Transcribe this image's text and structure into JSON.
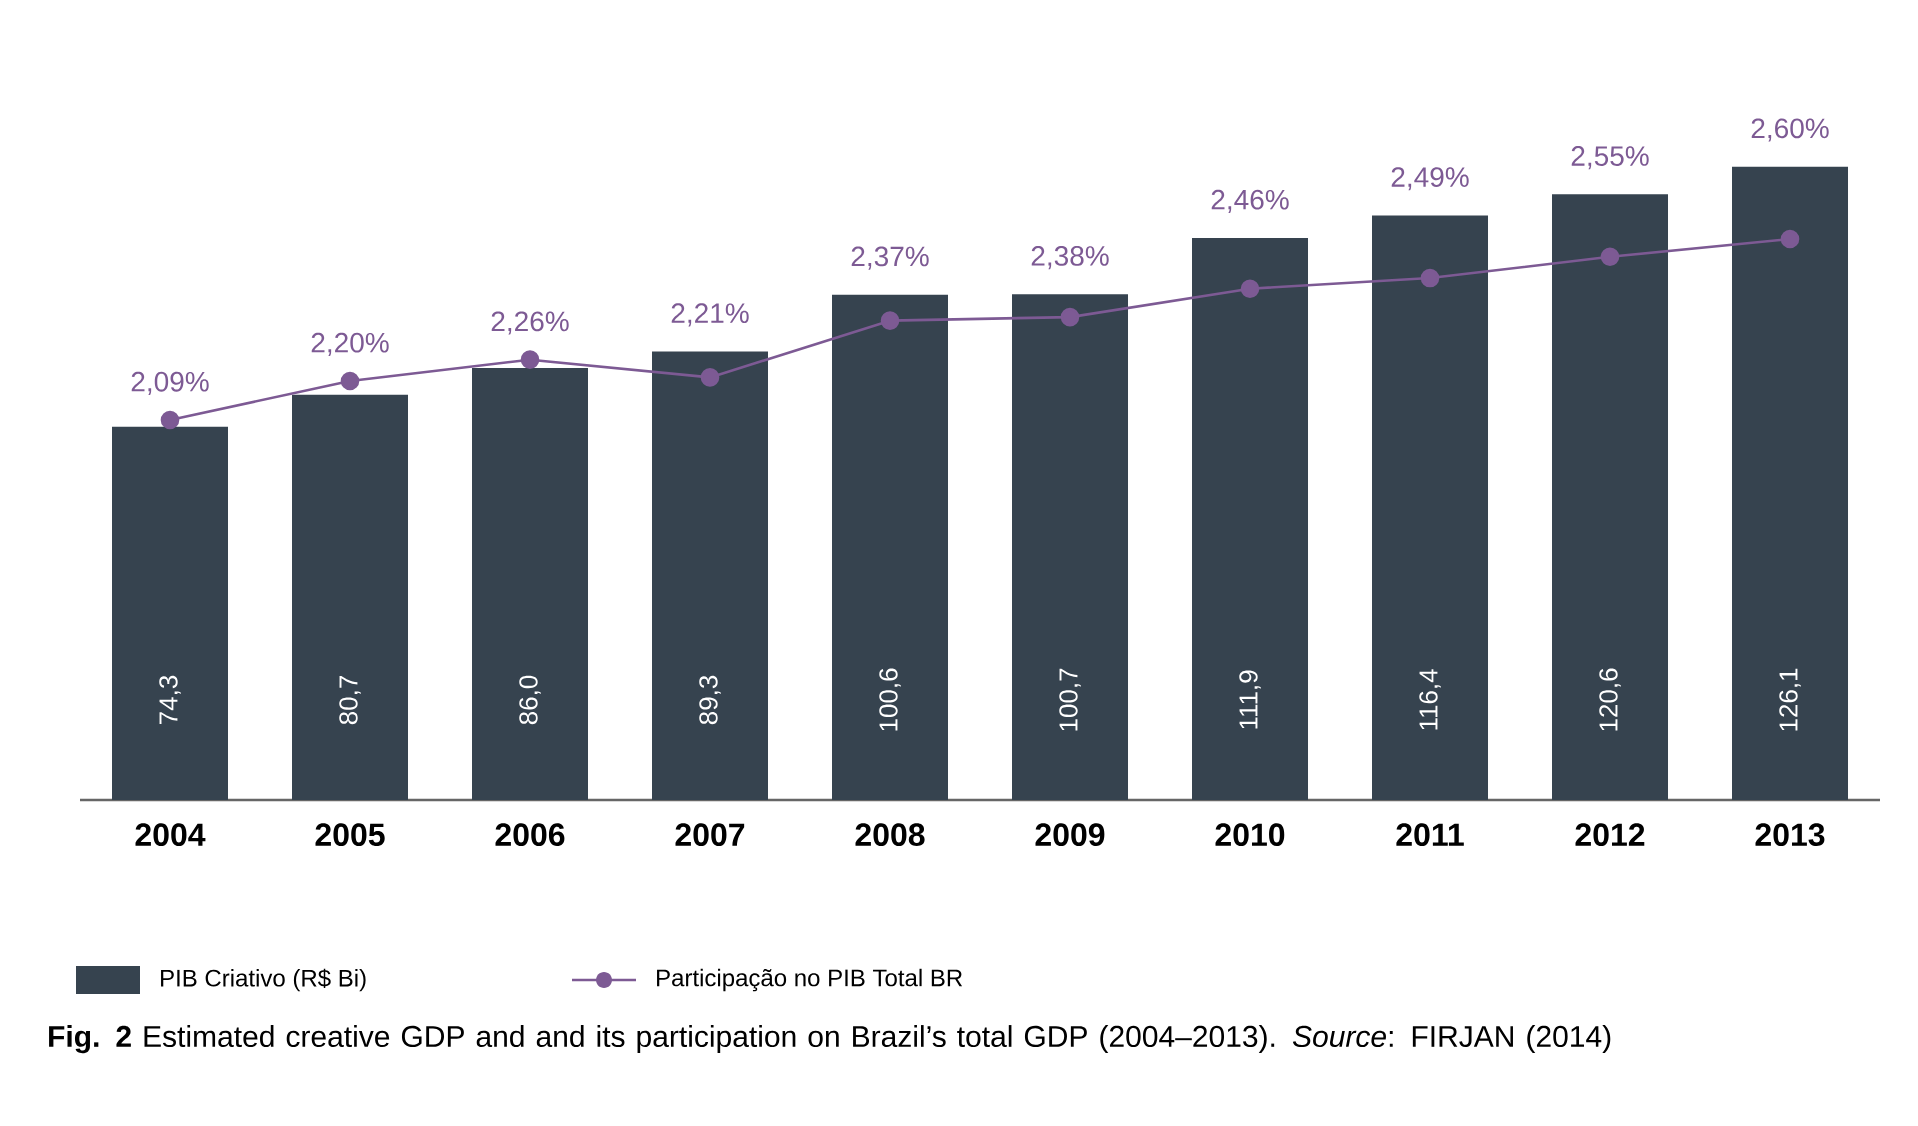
{
  "chart_data": {
    "type": "bar",
    "categories": [
      "2004",
      "2005",
      "2006",
      "2007",
      "2008",
      "2009",
      "2010",
      "2011",
      "2012",
      "2013"
    ],
    "series": [
      {
        "name": "PIB Criativo (R$ Bi)",
        "type": "bar",
        "color": "#36434f",
        "values": [
          74.3,
          80.7,
          86.0,
          89.3,
          100.6,
          100.7,
          111.9,
          116.4,
          120.6,
          126.1
        ],
        "value_labels": [
          "74,3",
          "80,7",
          "86,0",
          "89,3",
          "100,6",
          "100,7",
          "111,9",
          "116,4",
          "120,6",
          "126,1"
        ]
      },
      {
        "name": "Participação no PIB Total BR",
        "type": "line",
        "axis": "y2",
        "color": "#7d5a94",
        "values": [
          2.09,
          2.2,
          2.26,
          2.21,
          2.37,
          2.38,
          2.46,
          2.49,
          2.55,
          2.6
        ],
        "value_labels": [
          "2,09%",
          "2,20%",
          "2,26%",
          "2,21%",
          "2,37%",
          "2,38%",
          "2,46%",
          "2,49%",
          "2,55%",
          "2,60%"
        ]
      }
    ],
    "tick_labels": "x",
    "legend": "bottom",
    "marker": "circle",
    "annotations": [
      "**Fig. 2** Estimated creative GDP and and its participation on Brazil’s total GDP (2004–2013). *Source*: FIRJAN (2014)"
    ]
  }
}
